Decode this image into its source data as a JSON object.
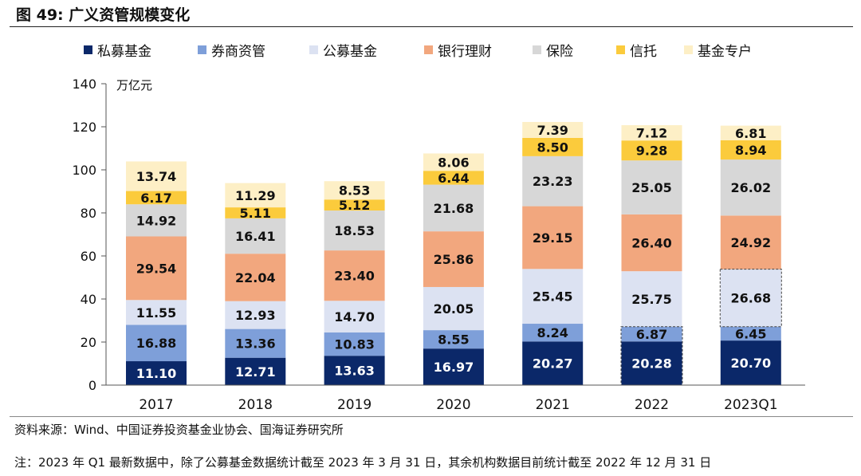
{
  "figure": {
    "title": "图 49:  广义资管规模变化",
    "source": "资料来源：Wind、中国证券投资基金业协会、国海证券研究所",
    "note": "注：2023 年 Q1 最新数据中，除了公募基金数据统计截至 2023 年 3 月 31 日，其余机构数据目前统计截至 2022 年 12 月 31 日"
  },
  "chart_data": {
    "type": "bar",
    "stacked": true,
    "categories": [
      "2017",
      "2018",
      "2019",
      "2020",
      "2021",
      "2022",
      "2023Q1"
    ],
    "ylabel": "万亿元",
    "ylim": [
      0,
      140
    ],
    "yticks": [
      0,
      20,
      40,
      60,
      80,
      100,
      120,
      140
    ],
    "grid": false,
    "legend_position": "top",
    "series": [
      {
        "name": "私募基金",
        "color": "#0B2869",
        "label_color": "#ffffff",
        "values": [
          11.1,
          12.71,
          13.63,
          16.97,
          20.27,
          20.28,
          20.7
        ]
      },
      {
        "name": "券商资管",
        "color": "#7E9FD9",
        "label_color": "#111111",
        "values": [
          16.88,
          13.36,
          10.83,
          8.55,
          8.24,
          6.87,
          6.45
        ]
      },
      {
        "name": "公募基金",
        "color": "#DCE2F2",
        "label_color": "#111111",
        "values": [
          11.55,
          12.93,
          14.7,
          20.05,
          25.45,
          25.75,
          26.68
        ]
      },
      {
        "name": "银行理财",
        "color": "#F2A77E",
        "label_color": "#111111",
        "values": [
          29.54,
          22.04,
          23.4,
          25.86,
          29.15,
          26.4,
          24.92
        ]
      },
      {
        "name": "保险",
        "color": "#D7D7D7",
        "label_color": "#111111",
        "values": [
          14.92,
          16.41,
          18.53,
          21.68,
          23.23,
          25.05,
          26.02
        ]
      },
      {
        "name": "信托",
        "color": "#FBCB3C",
        "label_color": "#111111",
        "values": [
          6.17,
          5.11,
          5.12,
          6.44,
          8.5,
          9.28,
          8.94
        ]
      },
      {
        "name": "基金专户",
        "color": "#FDEFC6",
        "label_color": "#111111",
        "values": [
          13.74,
          11.29,
          8.53,
          8.06,
          7.39,
          7.12,
          6.81
        ]
      }
    ],
    "highlighted_segments": [
      {
        "category": "2022",
        "series": [
          "私募基金",
          "券商资管"
        ]
      },
      {
        "category": "2023Q1",
        "series": [
          "公募基金"
        ]
      }
    ]
  }
}
